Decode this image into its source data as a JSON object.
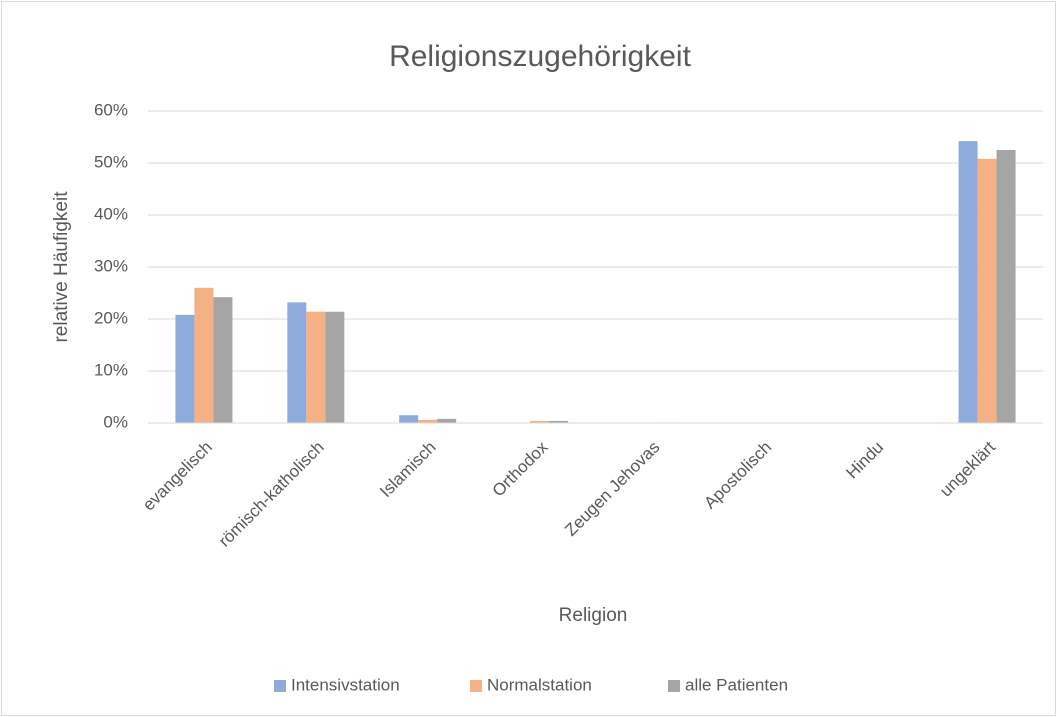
{
  "chart_data": {
    "type": "bar",
    "title": "Religionszugehörigkeit",
    "x_label": "Religion",
    "y_label": "relative Häufigkeit",
    "categories": [
      "evangelisch",
      "römisch-katholisch",
      "Islamisch",
      "Orthodox",
      "Zeugen Jehovas",
      "Apostolisch",
      "Hindu",
      "ungeklärt"
    ],
    "series": [
      {
        "name": "Intensivstation",
        "color": "#8faadc",
        "values": [
          20.8,
          23.2,
          1.5,
          0,
          0,
          0,
          0,
          54.2
        ]
      },
      {
        "name": "Normalstation",
        "color": "#f4b183",
        "values": [
          26.0,
          21.4,
          0.6,
          0.4,
          0,
          0,
          0,
          50.8
        ]
      },
      {
        "name": "alle Patienten",
        "color": "#a5a5a5",
        "values": [
          24.2,
          21.4,
          0.8,
          0.4,
          0.1,
          0,
          0,
          52.5
        ]
      }
    ],
    "ylim": [
      0,
      60
    ],
    "yticks": [
      {
        "value": 0,
        "label": "0%"
      },
      {
        "value": 10,
        "label": "10%"
      },
      {
        "value": 20,
        "label": "20%"
      },
      {
        "value": 30,
        "label": "30%"
      },
      {
        "value": 40,
        "label": "40%"
      },
      {
        "value": 50,
        "label": "50%"
      },
      {
        "value": 60,
        "label": "60%"
      }
    ],
    "grid": true,
    "legend": "bottom"
  }
}
